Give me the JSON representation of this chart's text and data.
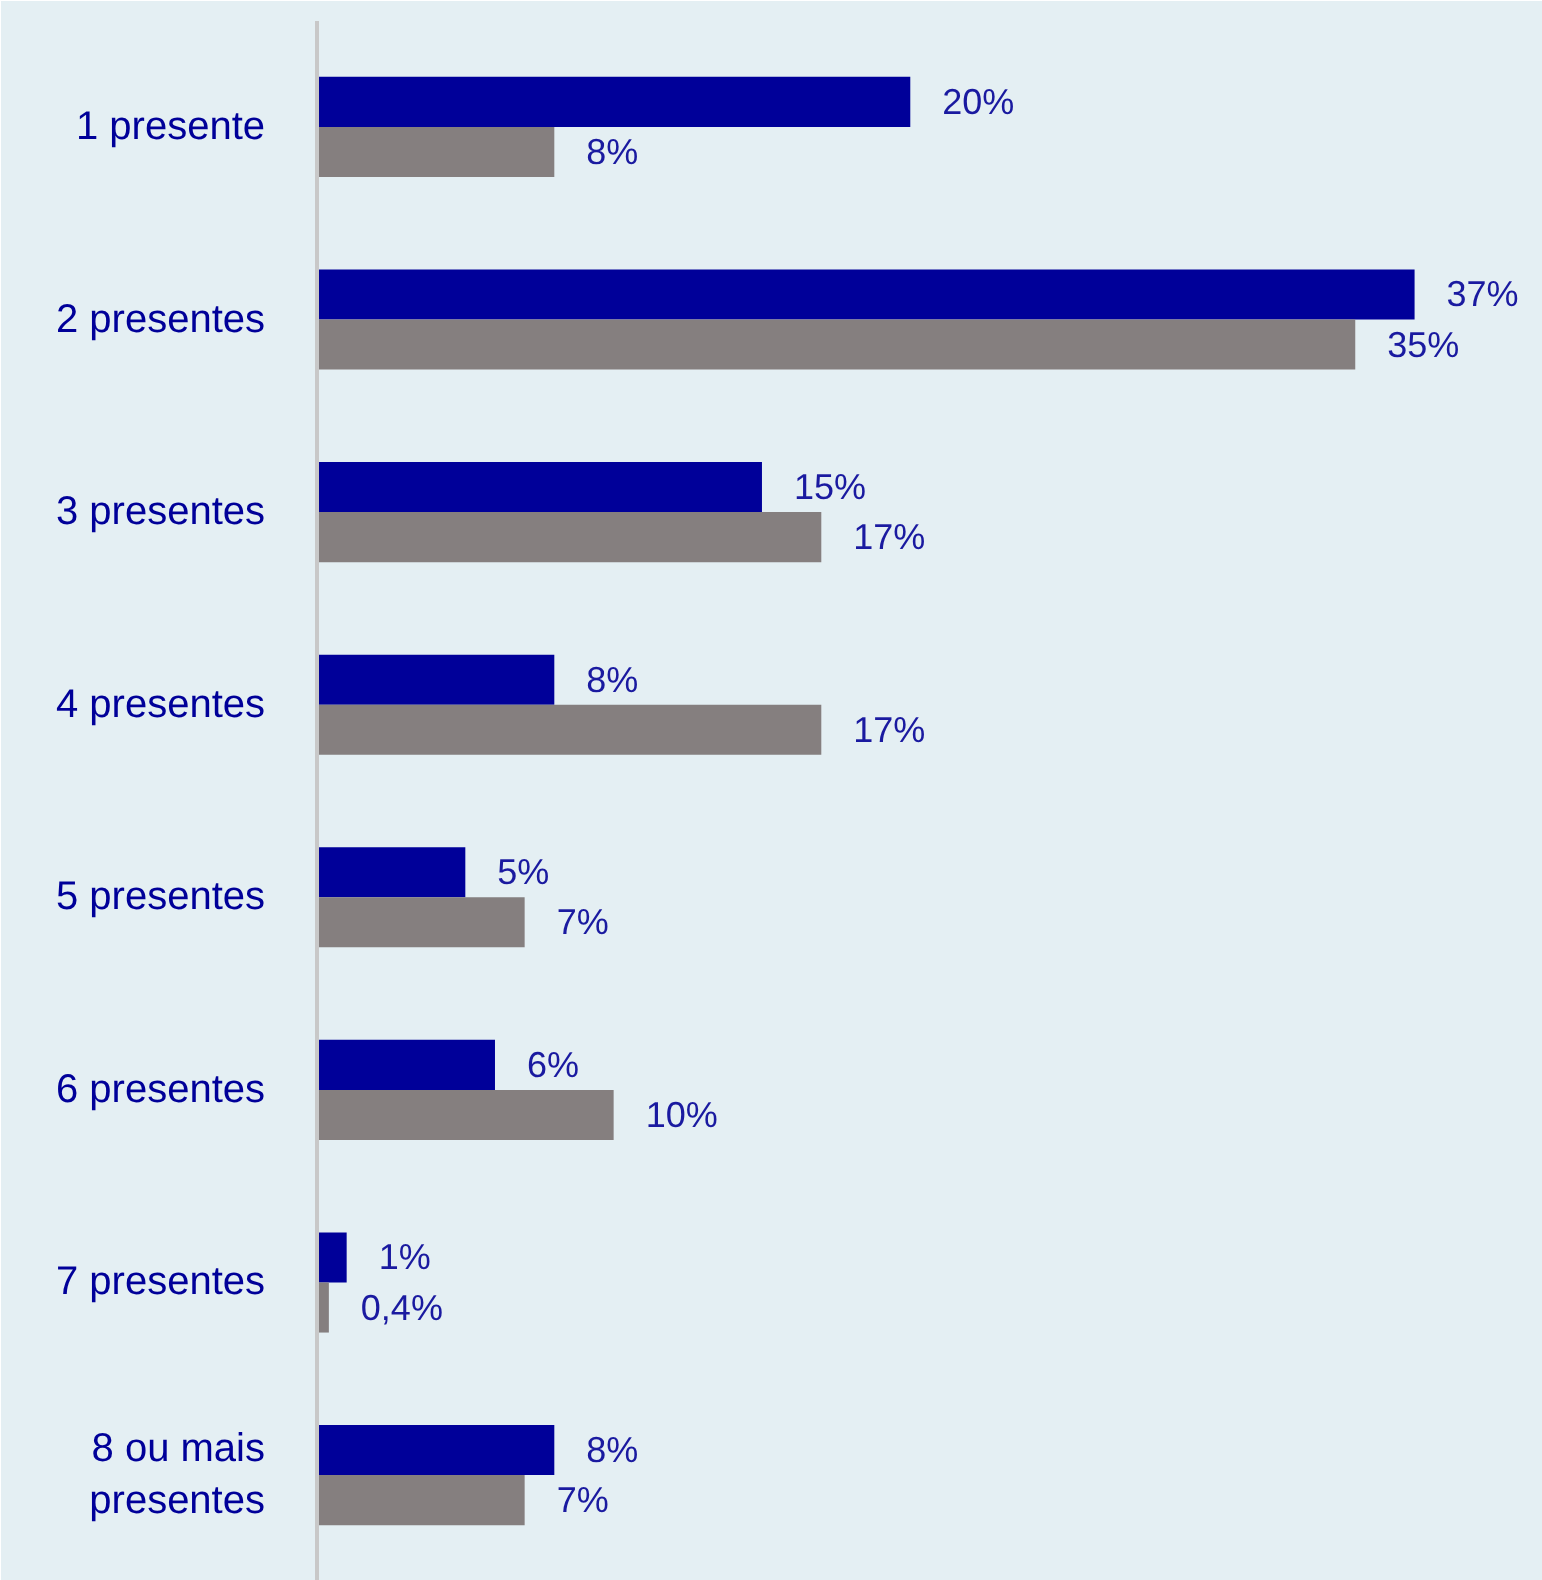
{
  "chart_data": {
    "type": "bar",
    "orientation": "horizontal",
    "categories": [
      "1 presente",
      "2 presentes",
      "3 presentes",
      "4 presentes",
      "5 presentes",
      "6 presentes",
      "7 presentes",
      "8 ou mais presentes"
    ],
    "series": [
      {
        "color": "#000099",
        "values": [
          20,
          37,
          15,
          8,
          5,
          6,
          1,
          8
        ],
        "value_labels": [
          "20%",
          "37%",
          "15%",
          "8%",
          "5%",
          "6%",
          "1%",
          "8%"
        ]
      },
      {
        "color": "#857f7f",
        "values": [
          8,
          35,
          17,
          17,
          7,
          10,
          0.4,
          7
        ],
        "value_labels": [
          "8%",
          "35%",
          "17%",
          "17%",
          "7%",
          "10%",
          "0,4%",
          "7%"
        ]
      }
    ],
    "grid": false
  }
}
